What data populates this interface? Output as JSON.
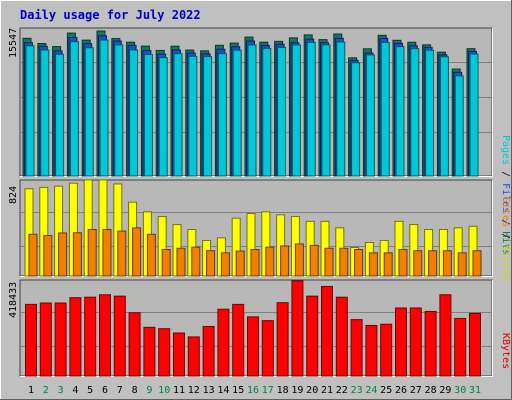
{
  "chart_data": {
    "type": "bar",
    "title": "Daily usage for July 2022",
    "categories": [
      "1",
      "2",
      "3",
      "4",
      "5",
      "6",
      "7",
      "8",
      "9",
      "10",
      "11",
      "12",
      "13",
      "14",
      "15",
      "16",
      "17",
      "18",
      "19",
      "20",
      "21",
      "22",
      "23",
      "24",
      "25",
      "26",
      "27",
      "28",
      "29",
      "30",
      "31"
    ],
    "weekend_days": [
      "2",
      "3",
      "9",
      "10",
      "16",
      "17",
      "23",
      "24",
      "30",
      "31"
    ],
    "panels": [
      {
        "id": "top",
        "scale_label": "15547",
        "ylim": [
          0,
          16600
        ],
        "y_axis_legend": [
          {
            "text": "Pages",
            "color": "#00c8d8"
          },
          {
            "text": " / ",
            "color": "#111111"
          },
          {
            "text": "Files",
            "color": "#1a4fd0"
          },
          {
            "text": " / ",
            "color": "#111111"
          },
          {
            "text": "Hits",
            "color": "#0f7a5a"
          }
        ],
        "series": [
          {
            "name": "Hits",
            "color": "#0f7a5a",
            "values": [
              15547,
              14963,
              14610,
              16138,
              15341,
              16371,
              15517,
              15107,
              14667,
              14180,
              14657,
              14221,
              14133,
              14757,
              15009,
              15692,
              15107,
              15205,
              15595,
              15936,
              15400,
              16036,
              13343,
              14366,
              15887,
              15322,
              15107,
              14806,
              13980,
              12080,
              14375
            ]
          },
          {
            "name": "Files",
            "color": "#1a4fd0",
            "values": [
              15049,
              14653,
              14125,
              15638,
              14944,
              15833,
              15242,
              14749,
              14166,
              13765,
              14224,
              13886,
              13799,
              14320,
              14605,
              15242,
              14749,
              14878,
              15049,
              15451,
              15049,
              15542,
              13062,
              13887,
              15542,
              14972,
              14709,
              14517,
              13683,
              11704,
              14066
            ]
          },
          {
            "name": "Pages",
            "color": "#00c8d8",
            "values": [
              14704,
              14222,
              13741,
              15165,
              14483,
              15352,
              14802,
              14232,
              13721,
              13367,
              13818,
              13513,
              13484,
              13818,
              14212,
              14802,
              14387,
              14512,
              14802,
              15077,
              14802,
              15125,
              12788,
              13680,
              15077,
              14605,
              14379,
              14212,
              13467,
              11301,
              13768
            ]
          }
        ]
      },
      {
        "id": "middle",
        "scale_label": "824",
        "ylim": [
          0,
          850
        ],
        "y_axis_legend": [
          {
            "text": "Sites",
            "color": "#f08000"
          },
          {
            "text": " / ",
            "color": "#111111"
          },
          {
            "text": "Visits",
            "color": "#d8d800"
          }
        ],
        "series": [
          {
            "name": "Visits",
            "color": "#ffff00",
            "values": [
              781,
              793,
              804,
              830,
              860,
              860,
              824,
              660,
              574,
              532,
              460,
              416,
              318,
              341,
              517,
              559,
              574,
              547,
              532,
              489,
              489,
              431,
              255,
              300,
              318,
              489,
              460,
              416,
              416,
              431,
              445
            ]
          },
          {
            "name": "Sites",
            "color": "#f08000",
            "values": [
              373,
              362,
              385,
              387,
              416,
              416,
              402,
              431,
              373,
              237,
              248,
              258,
              226,
              207,
              223,
              237,
              258,
              269,
              287,
              274,
              248,
              248,
              237,
              207,
              207,
              237,
              226,
              226,
              226,
              207,
              226
            ]
          }
        ]
      },
      {
        "id": "bottom",
        "scale_label": "418433",
        "ylim": [
          0,
          555000
        ],
        "y_axis_legend": [
          {
            "text": "KBytes",
            "color": "#e00000"
          }
        ],
        "series": [
          {
            "name": "KBytes",
            "color": "#ff0000",
            "values": [
              418433,
              426408,
              426408,
              457307,
              460321,
              474474,
              466398,
              369520,
              284386,
              276408,
              251200,
              228370,
              289336,
              390349,
              418433,
              345428,
              323326,
              428333,
              555234,
              466398,
              523335,
              460321,
              329365,
              295334,
              302330,
              397338,
              397338,
              377300,
              474474,
              336396,
              366363
            ]
          }
        ]
      }
    ],
    "legend_placement": "right-vertical",
    "grid": true
  }
}
